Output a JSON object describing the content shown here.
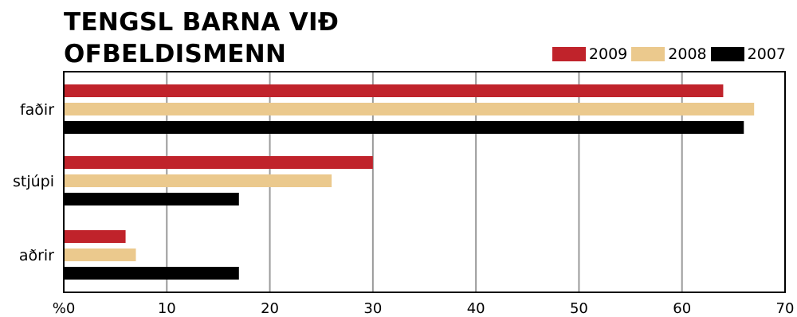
{
  "title_lines": [
    "TENGSL BARNA VIÐ",
    "OFBELDISMENN"
  ],
  "chart_data": {
    "type": "bar",
    "orientation": "horizontal",
    "title": "TENGSL BARNA VIÐ OFBELDISMENN",
    "categories": [
      "faðir",
      "stjúpi",
      "aðrir"
    ],
    "series": [
      {
        "name": "2009",
        "color": "#c0232b",
        "values": [
          64,
          30,
          6
        ]
      },
      {
        "name": "2008",
        "color": "#ebc98d",
        "values": [
          67,
          26,
          7
        ]
      },
      {
        "name": "2007",
        "color": "#000000",
        "values": [
          66,
          17,
          17
        ]
      }
    ],
    "xlim": [
      0,
      70
    ],
    "xticks": [
      0,
      10,
      20,
      30,
      40,
      50,
      60,
      70
    ],
    "x_unit_prefix": "%",
    "grid": true,
    "legend_position": "top-right"
  }
}
